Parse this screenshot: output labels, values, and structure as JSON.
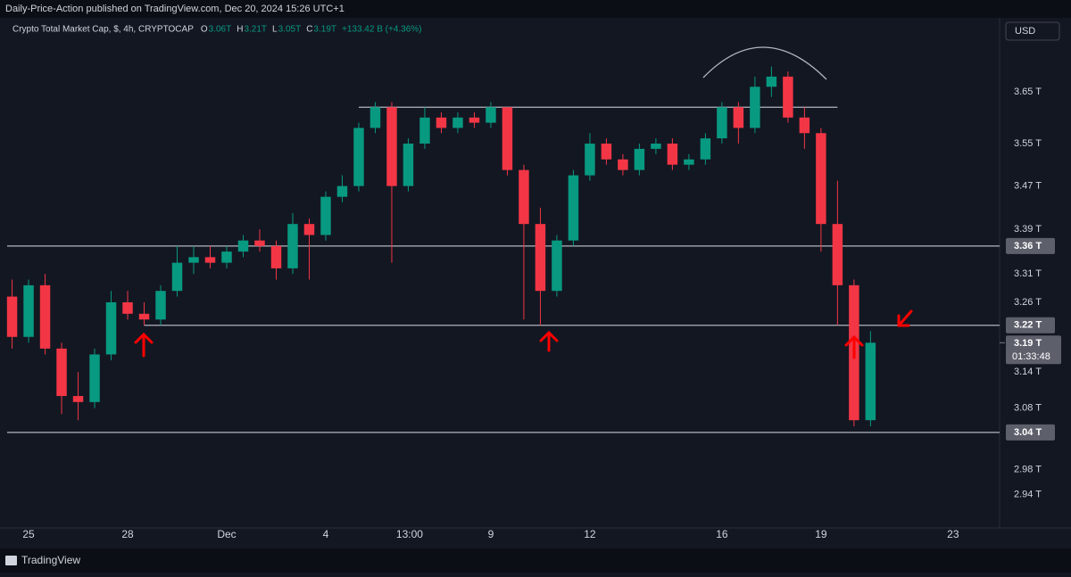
{
  "header": "Daily-Price-Action published on TradingView.com, Dec 20, 2024 15:26 UTC+1",
  "footer": "TradingView",
  "currency_button": "USD",
  "chart_data": {
    "type": "candlestick",
    "title": "Crypto Total Market Cap, $, 4h, CRYPTOCAP",
    "ohlc_legend": [
      {
        "key": "O",
        "value": "3.06T"
      },
      {
        "key": "H",
        "value": "3.21T"
      },
      {
        "key": "L",
        "value": "3.05T"
      },
      {
        "key": "C",
        "value": "3.19T"
      }
    ],
    "change": "+133.42 B (+4.36%)",
    "x": [
      -0.5,
      0,
      0.5,
      1,
      1.5,
      2,
      2.5,
      3,
      3.5,
      4,
      4.5,
      5,
      5.5,
      6,
      6.5,
      7,
      7.5,
      8,
      8.5,
      9,
      9.5,
      10,
      10.5,
      11,
      11.5,
      12,
      12.5,
      13,
      13.5,
      14,
      14.5,
      15,
      15.5,
      16,
      16.5,
      17,
      17.5,
      18,
      18.5,
      19,
      19.5,
      20,
      20.5,
      21,
      21.5,
      22,
      22.5,
      23,
      23.5,
      24,
      24.5,
      25,
      25.5
    ],
    "open": [
      3.27,
      3.2,
      3.29,
      3.18,
      3.1,
      3.09,
      3.17,
      3.26,
      3.24,
      3.23,
      3.28,
      3.33,
      3.34,
      3.33,
      3.35,
      3.37,
      3.36,
      3.32,
      3.4,
      3.38,
      3.45,
      3.47,
      3.58,
      3.62,
      3.47,
      3.55,
      3.6,
      3.58,
      3.6,
      3.59,
      3.62,
      3.5,
      3.4,
      3.28,
      3.37,
      3.49,
      3.55,
      3.52,
      3.5,
      3.54,
      3.55,
      3.51,
      3.52,
      3.56,
      3.62,
      3.58,
      3.66,
      3.68,
      3.6,
      3.57,
      3.4,
      3.29,
      3.06
    ],
    "high": [
      3.3,
      3.3,
      3.31,
      3.19,
      3.14,
      3.18,
      3.28,
      3.28,
      3.26,
      3.29,
      3.36,
      3.36,
      3.36,
      3.36,
      3.38,
      3.39,
      3.37,
      3.42,
      3.41,
      3.46,
      3.49,
      3.59,
      3.63,
      3.63,
      3.56,
      3.62,
      3.61,
      3.61,
      3.61,
      3.63,
      3.62,
      3.51,
      3.43,
      3.38,
      3.5,
      3.57,
      3.56,
      3.53,
      3.55,
      3.56,
      3.56,
      3.53,
      3.57,
      3.63,
      3.63,
      3.68,
      3.7,
      3.69,
      3.62,
      3.58,
      3.48,
      3.3,
      3.21
    ],
    "low": [
      3.18,
      3.19,
      3.17,
      3.07,
      3.06,
      3.08,
      3.16,
      3.23,
      3.22,
      3.22,
      3.27,
      3.31,
      3.32,
      3.32,
      3.34,
      3.35,
      3.3,
      3.31,
      3.3,
      3.37,
      3.44,
      3.46,
      3.57,
      3.33,
      3.46,
      3.54,
      3.57,
      3.57,
      3.58,
      3.58,
      3.49,
      3.23,
      3.22,
      3.27,
      3.36,
      3.48,
      3.51,
      3.49,
      3.49,
      3.53,
      3.5,
      3.5,
      3.51,
      3.55,
      3.55,
      3.57,
      3.64,
      3.59,
      3.54,
      3.35,
      3.22,
      3.05,
      3.05
    ],
    "close": [
      3.2,
      3.29,
      3.18,
      3.1,
      3.09,
      3.17,
      3.26,
      3.24,
      3.23,
      3.28,
      3.33,
      3.34,
      3.33,
      3.35,
      3.37,
      3.36,
      3.32,
      3.4,
      3.38,
      3.45,
      3.47,
      3.58,
      3.62,
      3.47,
      3.55,
      3.6,
      3.58,
      3.6,
      3.59,
      3.62,
      3.5,
      3.4,
      3.28,
      3.37,
      3.49,
      3.55,
      3.52,
      3.5,
      3.54,
      3.55,
      3.51,
      3.52,
      3.56,
      3.62,
      3.58,
      3.66,
      3.68,
      3.6,
      3.57,
      3.4,
      3.29,
      3.06,
      3.19
    ],
    "up_color": "#089981",
    "down_color": "#f23645",
    "log_scale": true,
    "ylim": [
      2.888,
      3.798
    ],
    "yticks": [
      {
        "value": 3.65,
        "label": "3.65 T"
      },
      {
        "value": 3.55,
        "label": "3.55 T"
      },
      {
        "value": 3.47,
        "label": "3.47 T"
      },
      {
        "value": 3.39,
        "label": "3.39 T"
      },
      {
        "value": 3.31,
        "label": "3.31 T"
      },
      {
        "value": 3.26,
        "label": "3.26 T"
      },
      {
        "value": 3.14,
        "label": "3.14 T"
      },
      {
        "value": 3.08,
        "label": "3.08 T"
      },
      {
        "value": 2.98,
        "label": "2.98 T"
      },
      {
        "value": 2.94,
        "label": "2.94 T"
      }
    ],
    "xlim": [
      -0.65,
      29.41
    ],
    "xticks": [
      {
        "value": 0,
        "label": "25"
      },
      {
        "value": 3,
        "label": "28"
      },
      {
        "value": 6,
        "label": "Dec"
      },
      {
        "value": 9,
        "label": "4"
      },
      {
        "value": 11.54,
        "label": "13:00"
      },
      {
        "value": 14,
        "label": "9"
      },
      {
        "value": 17,
        "label": "12"
      },
      {
        "value": 21,
        "label": "16"
      },
      {
        "value": 24,
        "label": "19"
      },
      {
        "value": 28,
        "label": "23"
      }
    ],
    "levels": [
      {
        "value": 3.62,
        "from": 10,
        "to": 24.5
      },
      {
        "value": 3.36,
        "label": "3.36 T"
      },
      {
        "value": 3.22,
        "label": "3.22 T",
        "from": 3.5
      },
      {
        "value": 3.04,
        "label": "3.04 T"
      }
    ],
    "last_price": {
      "value": 3.19,
      "label": "3.19 T",
      "countdown": "01:33:48"
    }
  }
}
